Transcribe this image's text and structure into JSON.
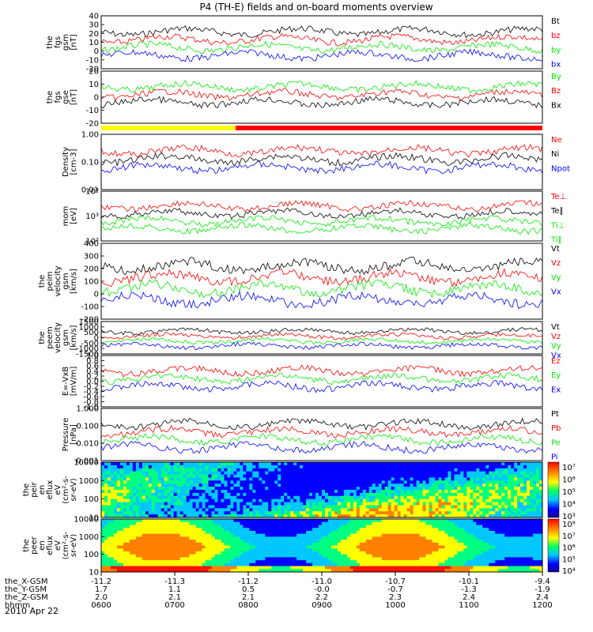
{
  "title": "P4 (TH-E) fields and on-board moments overview",
  "date_label": "2010 Apr 22",
  "colors": {
    "black": "#000000",
    "red": "#ff0000",
    "green": "#00ee00",
    "blue": "#0000ff",
    "yellow": "#ffff00"
  },
  "chart_data": [
    {
      "id": "fgs_gsm",
      "type": "line",
      "ylabel": [
        "the",
        "fgs",
        "gsm",
        "[nT]"
      ],
      "ylim": [
        -20,
        40
      ],
      "yticks": [
        "40",
        "30",
        "20",
        "10",
        "0",
        "-10",
        "-20"
      ],
      "legend": [
        {
          "name": "Bt",
          "color": "#000000"
        },
        {
          "name": "bz",
          "color": "#ff0000"
        },
        {
          "name": "by",
          "color": "#00ee00"
        },
        {
          "name": "bx",
          "color": "#0000ff"
        }
      ]
    },
    {
      "id": "fgs_gse",
      "type": "line",
      "ylabel": [
        "the",
        "fgs",
        "gse",
        "[nT]"
      ],
      "ylim": [
        -25,
        20
      ],
      "yticks": [
        "20",
        "10",
        "0",
        "-10",
        "-20"
      ],
      "legend": [
        {
          "name": "By",
          "color": "#00ee00"
        },
        {
          "name": "Bz",
          "color": "#ff0000"
        },
        {
          "name": "Bx",
          "color": "#000000"
        }
      ]
    },
    {
      "id": "density",
      "type": "line",
      "ylabel": [
        "Density",
        "[cm-3]"
      ],
      "yscale": "log",
      "ylim": [
        0.01,
        1.5
      ],
      "yticks": [
        "1.00",
        "0.10",
        "0.01"
      ],
      "legend": [
        {
          "name": "Ne",
          "color": "#ff0000"
        },
        {
          "name": "Ni",
          "color": "#000000"
        },
        {
          "name": "Npot",
          "color": "#0000ff"
        }
      ]
    },
    {
      "id": "temp",
      "type": "line",
      "ylabel": [
        "mom",
        "[eV]"
      ],
      "yscale": "log",
      "ylim": [
        100,
        20000
      ],
      "yticks": [
        "10⁴",
        "10³",
        "10²"
      ],
      "legend": [
        {
          "name": "Te⊥",
          "color": "#ff0000"
        },
        {
          "name": "Te∥",
          "color": "#000000"
        },
        {
          "name": "Ti⊥",
          "color": "#00ee00"
        },
        {
          "name": "Ti∥",
          "color": "#00ee00"
        }
      ]
    },
    {
      "id": "peim_vel",
      "type": "line",
      "ylabel": [
        "the",
        "peim",
        "velocity",
        "gsm",
        "[km/s]"
      ],
      "ylim": [
        -200,
        400
      ],
      "yticks": [
        "400",
        "300",
        "200",
        "100",
        "0",
        "-100",
        "-200"
      ],
      "legend": [
        {
          "name": "Vt",
          "color": "#000000"
        },
        {
          "name": "Vz",
          "color": "#ff0000"
        },
        {
          "name": "Vy",
          "color": "#00ee00"
        },
        {
          "name": "Vx",
          "color": "#0000ff"
        }
      ]
    },
    {
      "id": "peem_vel",
      "type": "line",
      "ylabel": [
        "the",
        "peem",
        "velocity",
        "gsm",
        "[km/s]"
      ],
      "ylim": [
        -1500,
        1500
      ],
      "yticks": [
        "1500",
        "1000",
        "500",
        "0",
        "-500",
        "-1000",
        "-1500"
      ],
      "legend": [
        {
          "name": "Vt",
          "color": "#000000"
        },
        {
          "name": "Vz",
          "color": "#ff0000"
        },
        {
          "name": "Vy",
          "color": "#00ee00"
        },
        {
          "name": "Vx",
          "color": "#0000ff"
        }
      ]
    },
    {
      "id": "efield",
      "type": "line",
      "ylabel": [
        "E=-VxB",
        "[mV/m]"
      ],
      "ylim": [
        -1,
        1
      ],
      "yticks": [
        "1.0",
        "0.8",
        "0.6",
        "0.4",
        "0.2",
        "0.0",
        "-0.2",
        "-0.4",
        "-0.6",
        "-0.8",
        "-1.0"
      ],
      "legend": [
        {
          "name": "Ez",
          "color": "#ff0000"
        },
        {
          "name": "Ey",
          "color": "#00ee00"
        },
        {
          "name": "Ex",
          "color": "#0000ff"
        }
      ]
    },
    {
      "id": "pressure",
      "type": "line",
      "ylabel": [
        "Pressure",
        "[nPa]"
      ],
      "yscale": "log",
      "ylim": [
        0.001,
        1.2
      ],
      "yticks": [
        "1.000",
        "0.100",
        "0.010",
        "0.001"
      ],
      "legend": [
        {
          "name": "Pt",
          "color": "#000000"
        },
        {
          "name": "Pb",
          "color": "#ff0000"
        },
        {
          "name": "Pe",
          "color": "#00ee00"
        },
        {
          "name": "Pi",
          "color": "#0000ff"
        }
      ]
    },
    {
      "id": "peir_eflux",
      "type": "heatmap",
      "ylabel": [
        "the",
        "peir",
        "en",
        "eflux",
        "eV",
        "(cm²-s-",
        "sr-eV)"
      ],
      "yscale": "log",
      "ylim": [
        10,
        20000
      ],
      "yticks": [
        "10000",
        "1000",
        "100",
        "10"
      ],
      "colorbar": {
        "ticks": [
          "10⁷",
          "10⁶",
          "10⁵",
          "10⁴",
          "10³"
        ]
      }
    },
    {
      "id": "peer_eflux",
      "type": "heatmap",
      "ylabel": [
        "the",
        "peer",
        "en",
        "eflux",
        "eV",
        "(cm²-s-",
        "sr-eV)"
      ],
      "yscale": "log",
      "ylim": [
        10,
        15000
      ],
      "yticks": [
        "10000",
        "1000",
        "100",
        "10"
      ],
      "colorbar": {
        "ticks": [
          "10⁸",
          "10⁷",
          "10⁶",
          "10⁵",
          "10⁴"
        ]
      }
    }
  ],
  "xaxis": {
    "rows": [
      {
        "label": "the_X-GSM",
        "values": [
          "-11.2",
          "-11.3",
          "-11.2",
          "-11.0",
          "-10.7",
          "-10.1",
          "-9.4"
        ]
      },
      {
        "label": "the_Y-GSM",
        "values": [
          "1.7",
          "1.1",
          "0.5",
          "-0.0",
          "-0.7",
          "-1.3",
          "-1.9"
        ]
      },
      {
        "label": "the_Z-GSM",
        "values": [
          "2.0",
          "2.1",
          "2.1",
          "2.2",
          "2.3",
          "2.4",
          "2.4"
        ]
      },
      {
        "label": "hhmm",
        "values": [
          "0600",
          "0700",
          "0800",
          "0900",
          "1000",
          "1100",
          "1200"
        ]
      }
    ]
  }
}
